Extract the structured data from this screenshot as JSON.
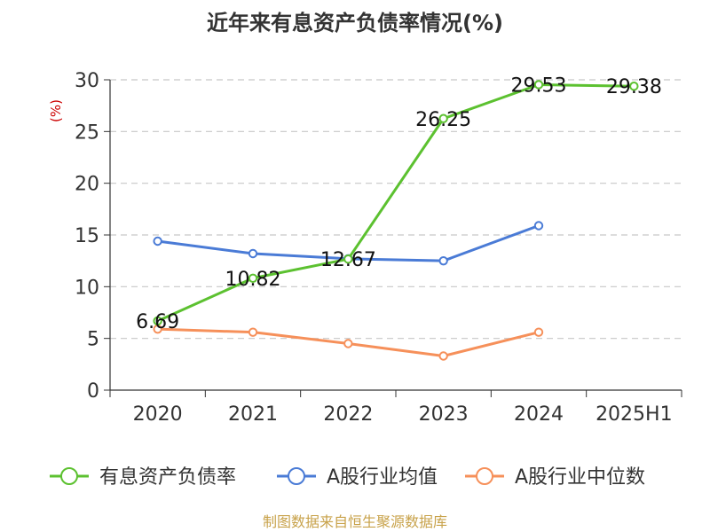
{
  "chart_data": {
    "type": "line",
    "title": "近年来有息资产负债率情况(%)",
    "ylabel": "(%)",
    "ylim": [
      0,
      30
    ],
    "yticks": [
      0,
      5,
      10,
      15,
      20,
      25,
      30
    ],
    "grid": true,
    "legend_position": "bottom",
    "categories": [
      "2020",
      "2021",
      "2022",
      "2023",
      "2024",
      "2025H1"
    ],
    "series": [
      {
        "name": "有息资产负债率",
        "color": "#5cc130",
        "values": [
          6.69,
          10.82,
          12.67,
          26.25,
          29.53,
          29.38
        ],
        "labels": [
          "6.69",
          "10.82",
          "12.67",
          "26.25",
          "29.53",
          "29.38"
        ]
      },
      {
        "name": "A股行业均值",
        "color": "#4a7bd6",
        "values": [
          14.4,
          13.2,
          12.7,
          12.5,
          15.9,
          null
        ]
      },
      {
        "name": "A股行业中位数",
        "color": "#f6905a",
        "values": [
          5.9,
          5.6,
          4.5,
          3.3,
          5.6,
          null
        ]
      }
    ]
  },
  "source": "制图数据来自恒生聚源数据库"
}
